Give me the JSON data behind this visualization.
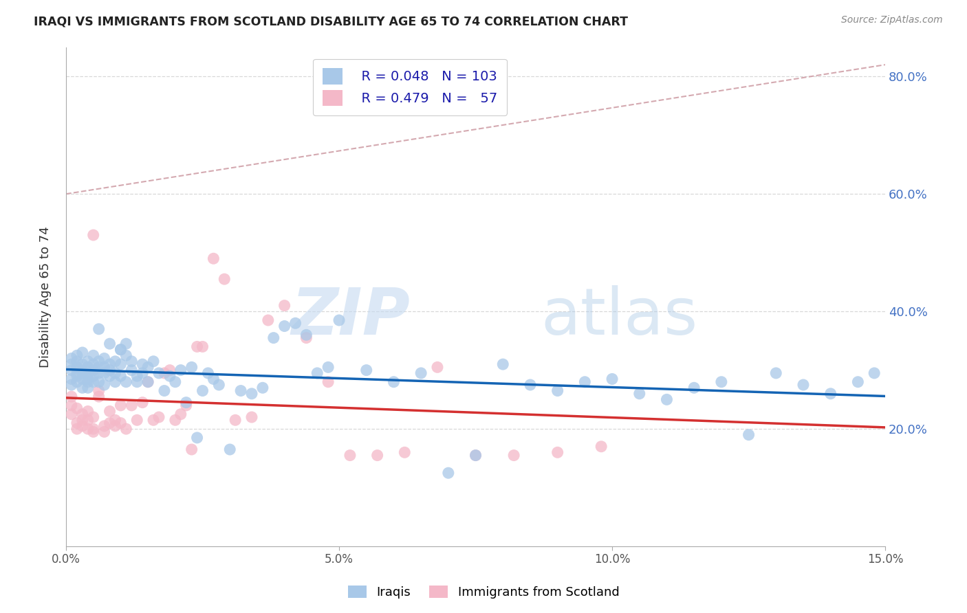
{
  "title": "IRAQI VS IMMIGRANTS FROM SCOTLAND DISABILITY AGE 65 TO 74 CORRELATION CHART",
  "source": "Source: ZipAtlas.com",
  "ylabel": "Disability Age 65 to 74",
  "xmin": 0.0,
  "xmax": 0.15,
  "ymin": 0.0,
  "ymax": 0.85,
  "x_ticks": [
    0.0,
    0.05,
    0.1,
    0.15
  ],
  "x_tick_labels": [
    "0.0%",
    "5.0%",
    "10.0%",
    "15.0%"
  ],
  "y_ticks": [
    0.2,
    0.4,
    0.6,
    0.8
  ],
  "y_tick_labels": [
    "20.0%",
    "40.0%",
    "60.0%",
    "80.0%"
  ],
  "legend_labels": [
    "Iraqis",
    "Immigrants from Scotland"
  ],
  "iraqis_color": "#a8c8e8",
  "scotland_color": "#f4b8c8",
  "iraqis_line_color": "#1464b4",
  "scotland_line_color": "#d43030",
  "dashed_line_color": "#d0a0a8",
  "R_iraqis": 0.048,
  "N_iraqis": 103,
  "R_scotland": 0.479,
  "N_scotland": 57,
  "iraqis_x": [
    0.001,
    0.001,
    0.001,
    0.001,
    0.001,
    0.002,
    0.002,
    0.002,
    0.002,
    0.002,
    0.002,
    0.003,
    0.003,
    0.003,
    0.003,
    0.003,
    0.003,
    0.004,
    0.004,
    0.004,
    0.004,
    0.004,
    0.004,
    0.005,
    0.005,
    0.005,
    0.005,
    0.005,
    0.006,
    0.006,
    0.006,
    0.006,
    0.007,
    0.007,
    0.007,
    0.007,
    0.008,
    0.008,
    0.008,
    0.009,
    0.009,
    0.009,
    0.01,
    0.01,
    0.01,
    0.011,
    0.011,
    0.011,
    0.012,
    0.012,
    0.013,
    0.013,
    0.014,
    0.014,
    0.015,
    0.015,
    0.016,
    0.017,
    0.018,
    0.019,
    0.02,
    0.021,
    0.022,
    0.023,
    0.024,
    0.025,
    0.026,
    0.027,
    0.028,
    0.03,
    0.032,
    0.034,
    0.036,
    0.038,
    0.04,
    0.042,
    0.044,
    0.046,
    0.048,
    0.05,
    0.055,
    0.06,
    0.065,
    0.07,
    0.075,
    0.08,
    0.085,
    0.09,
    0.095,
    0.1,
    0.105,
    0.11,
    0.115,
    0.12,
    0.125,
    0.13,
    0.135,
    0.14,
    0.145,
    0.148,
    0.006,
    0.008,
    0.01
  ],
  "iraqis_y": [
    0.3,
    0.285,
    0.31,
    0.275,
    0.32,
    0.29,
    0.305,
    0.315,
    0.28,
    0.295,
    0.325,
    0.285,
    0.3,
    0.27,
    0.31,
    0.295,
    0.33,
    0.28,
    0.315,
    0.295,
    0.305,
    0.27,
    0.285,
    0.31,
    0.325,
    0.29,
    0.3,
    0.28,
    0.305,
    0.315,
    0.295,
    0.28,
    0.32,
    0.295,
    0.305,
    0.275,
    0.31,
    0.29,
    0.3,
    0.315,
    0.28,
    0.295,
    0.335,
    0.31,
    0.29,
    0.325,
    0.28,
    0.345,
    0.3,
    0.315,
    0.29,
    0.28,
    0.31,
    0.295,
    0.305,
    0.28,
    0.315,
    0.295,
    0.265,
    0.29,
    0.28,
    0.3,
    0.245,
    0.305,
    0.185,
    0.265,
    0.295,
    0.285,
    0.275,
    0.165,
    0.265,
    0.26,
    0.27,
    0.355,
    0.375,
    0.38,
    0.36,
    0.295,
    0.305,
    0.385,
    0.3,
    0.28,
    0.295,
    0.125,
    0.155,
    0.31,
    0.275,
    0.265,
    0.28,
    0.285,
    0.26,
    0.25,
    0.27,
    0.28,
    0.19,
    0.295,
    0.275,
    0.26,
    0.28,
    0.295,
    0.37,
    0.345,
    0.335
  ],
  "scotland_x": [
    0.001,
    0.001,
    0.001,
    0.002,
    0.002,
    0.002,
    0.003,
    0.003,
    0.003,
    0.004,
    0.004,
    0.004,
    0.005,
    0.005,
    0.005,
    0.006,
    0.006,
    0.007,
    0.007,
    0.008,
    0.008,
    0.009,
    0.009,
    0.01,
    0.01,
    0.011,
    0.012,
    0.013,
    0.014,
    0.015,
    0.016,
    0.017,
    0.018,
    0.019,
    0.02,
    0.021,
    0.022,
    0.023,
    0.024,
    0.025,
    0.027,
    0.029,
    0.031,
    0.034,
    0.037,
    0.04,
    0.044,
    0.048,
    0.052,
    0.057,
    0.062,
    0.068,
    0.075,
    0.082,
    0.09,
    0.098,
    0.005
  ],
  "scotland_y": [
    0.24,
    0.255,
    0.225,
    0.21,
    0.235,
    0.2,
    0.205,
    0.225,
    0.215,
    0.2,
    0.215,
    0.23,
    0.2,
    0.22,
    0.195,
    0.255,
    0.265,
    0.195,
    0.205,
    0.23,
    0.21,
    0.205,
    0.215,
    0.24,
    0.21,
    0.2,
    0.24,
    0.215,
    0.245,
    0.28,
    0.215,
    0.22,
    0.295,
    0.3,
    0.215,
    0.225,
    0.24,
    0.165,
    0.34,
    0.34,
    0.49,
    0.455,
    0.215,
    0.22,
    0.385,
    0.41,
    0.355,
    0.28,
    0.155,
    0.155,
    0.16,
    0.305,
    0.155,
    0.155,
    0.16,
    0.17,
    0.53
  ],
  "watermark_zip": "ZIP",
  "watermark_atlas": "atlas",
  "background_color": "#ffffff",
  "grid_color": "#d8d8d8",
  "tick_color": "#4472c4",
  "legend_text_color": "#1a1aaa"
}
